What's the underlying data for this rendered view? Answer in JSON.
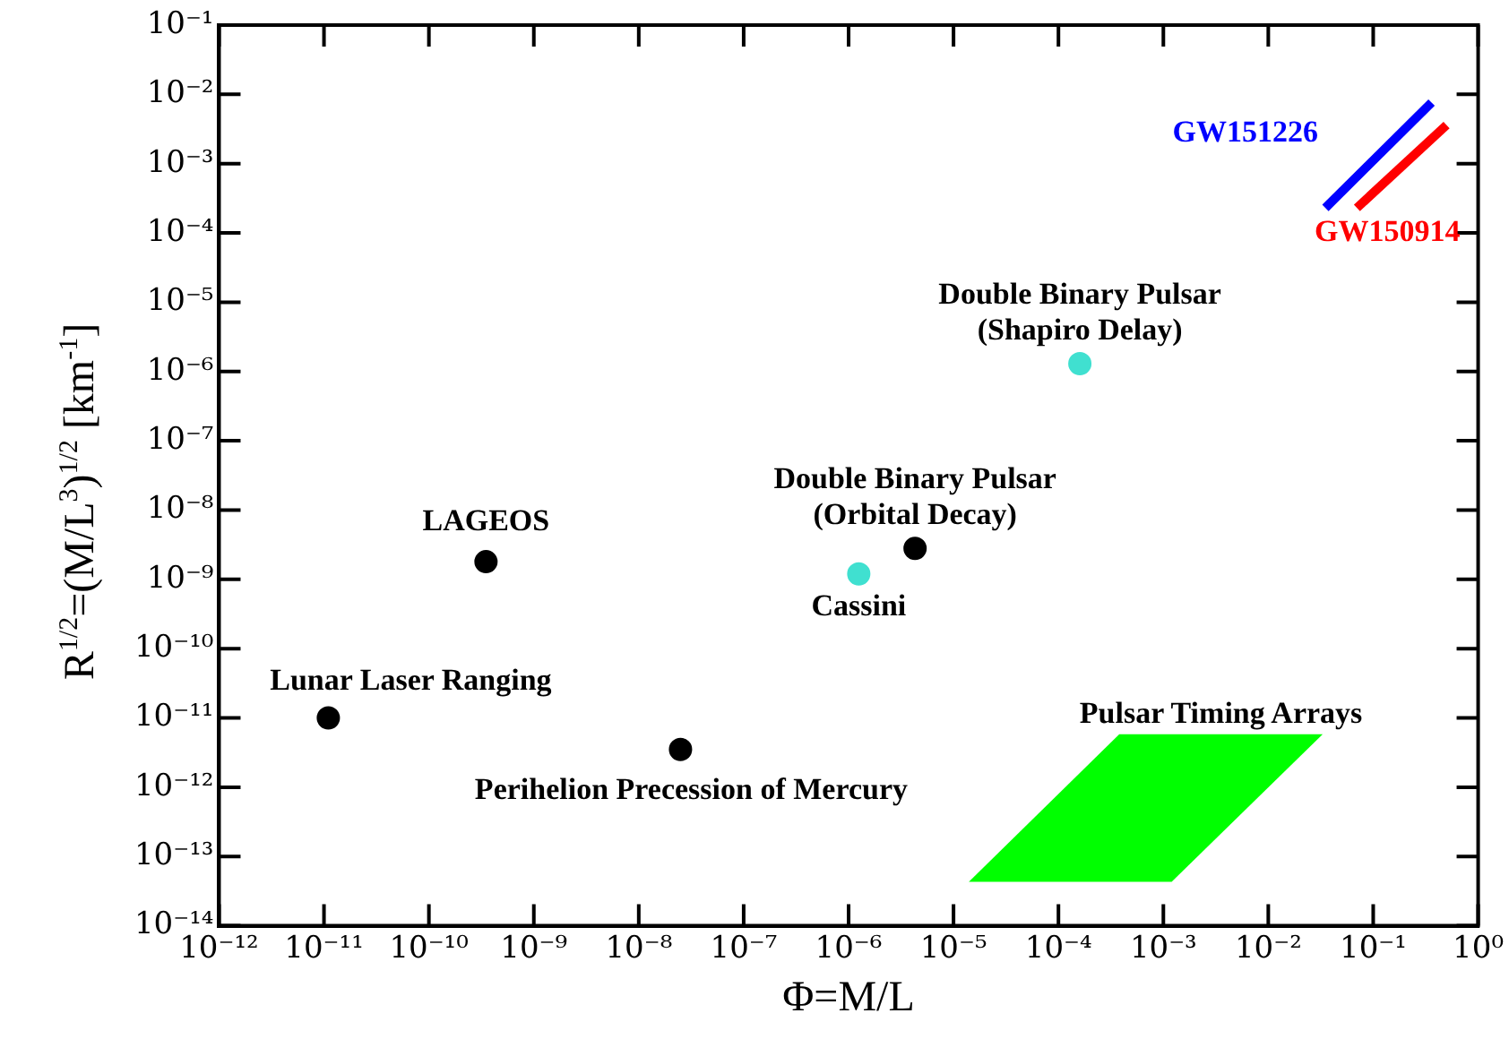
{
  "chart_data": {
    "type": "scatter",
    "xlabel": "Φ=M/L",
    "ylabel": "R$^{1/2}$=(M/L$^{3}$)$^{1/2}$ [km$^{-1}$]",
    "annotations": [
      {
        "text": "Lunar Laser Ranging",
        "x": 1.1e-11,
        "y": 1e-11
      },
      {
        "text": "LAGEOS",
        "x": 3.5e-10,
        "y": 1.8e-09
      },
      {
        "text": "Perihelion Precession of Mercury",
        "x": 2.5e-08,
        "y": 3.5e-12
      },
      {
        "text": "Double Binary Pulsar\n(Orbital Decay)",
        "x": 4.3e-06,
        "y": 2.8e-09
      },
      {
        "text": "Cassini",
        "x": 1.25e-06,
        "y": 1.2e-09
      },
      {
        "text": "Double Binary Pulsar\n(Shapiro Delay)",
        "x": 0.00016,
        "y": 1.3e-06
      }
    ],
    "log": "xy",
    "grid": false,
    "legend": false,
    "marker": "circle",
    "xlim": [
      1e-12,
      1
    ],
    "ylim": [
      1e-14,
      0.1
    ],
    "xticks": [
      {
        "value": 1e-12,
        "label": "10⁻¹²"
      },
      {
        "value": 1e-11,
        "label": "10⁻¹¹"
      },
      {
        "value": 1e-10,
        "label": "10⁻¹⁰"
      },
      {
        "value": 1e-09,
        "label": "10⁻⁹"
      },
      {
        "value": 1e-08,
        "label": "10⁻⁸"
      },
      {
        "value": 1e-07,
        "label": "10⁻⁷"
      },
      {
        "value": 1e-06,
        "label": "10⁻⁶"
      },
      {
        "value": 1e-05,
        "label": "10⁻⁵"
      },
      {
        "value": 0.0001,
        "label": "10⁻⁴"
      },
      {
        "value": 0.001,
        "label": "10⁻³"
      },
      {
        "value": 0.01,
        "label": "10⁻²"
      },
      {
        "value": 0.1,
        "label": "10⁻¹"
      },
      {
        "value": 1,
        "label": "10⁰"
      }
    ],
    "yticks": [
      {
        "value": 1e-14,
        "label": "10⁻¹⁴"
      },
      {
        "value": 1e-13,
        "label": "10⁻¹³"
      },
      {
        "value": 1e-12,
        "label": "10⁻¹²"
      },
      {
        "value": 1e-11,
        "label": "10⁻¹¹"
      },
      {
        "value": 1e-10,
        "label": "10⁻¹⁰"
      },
      {
        "value": 1e-09,
        "label": "10⁻⁹"
      },
      {
        "value": 1e-08,
        "label": "10⁻⁸"
      },
      {
        "value": 1e-07,
        "label": "10⁻⁷"
      },
      {
        "value": 1e-06,
        "label": "10⁻⁶"
      },
      {
        "value": 1e-05,
        "label": "10⁻⁵"
      },
      {
        "value": 0.0001,
        "label": "10⁻⁴"
      },
      {
        "value": 0.001,
        "label": "10⁻³"
      },
      {
        "value": 0.01,
        "label": "10⁻²"
      },
      {
        "value": 0.1,
        "label": "10⁻¹"
      }
    ],
    "series": [
      {
        "color": "#000000",
        "x": [
          1.1e-11,
          3.5e-10,
          2.5e-08,
          4.3e-06
        ],
        "values": [
          1e-11,
          1.8e-09,
          3.5e-12,
          2.8e-09
        ]
      },
      {
        "color": "#40e0d0",
        "x": [
          1.25e-06,
          0.00016
        ],
        "values": [
          1.2e-09,
          1.3e-06
        ]
      },
      {
        "name": "GW151226",
        "type": "line",
        "marker": "none",
        "color": "#0000ff",
        "x": [
          0.035,
          0.36
        ],
        "values": [
          0.00023,
          0.0076
        ]
      },
      {
        "name": "GW150914",
        "type": "line",
        "marker": "none",
        "color": "#ff0000",
        "x": [
          0.07,
          0.5
        ],
        "values": [
          0.00023,
          0.0036
        ]
      },
      {
        "name": "Pulsar Timing Arrays",
        "type": "area",
        "marker": "none",
        "color": "#00ff00",
        "x": [
          1.4e-05,
          0.00038,
          0.033,
          0.0012,
          1.4e-05
        ],
        "values": [
          4.3e-14,
          5.8e-12,
          5.8e-12,
          4.3e-14,
          4.3e-14
        ]
      }
    ]
  }
}
